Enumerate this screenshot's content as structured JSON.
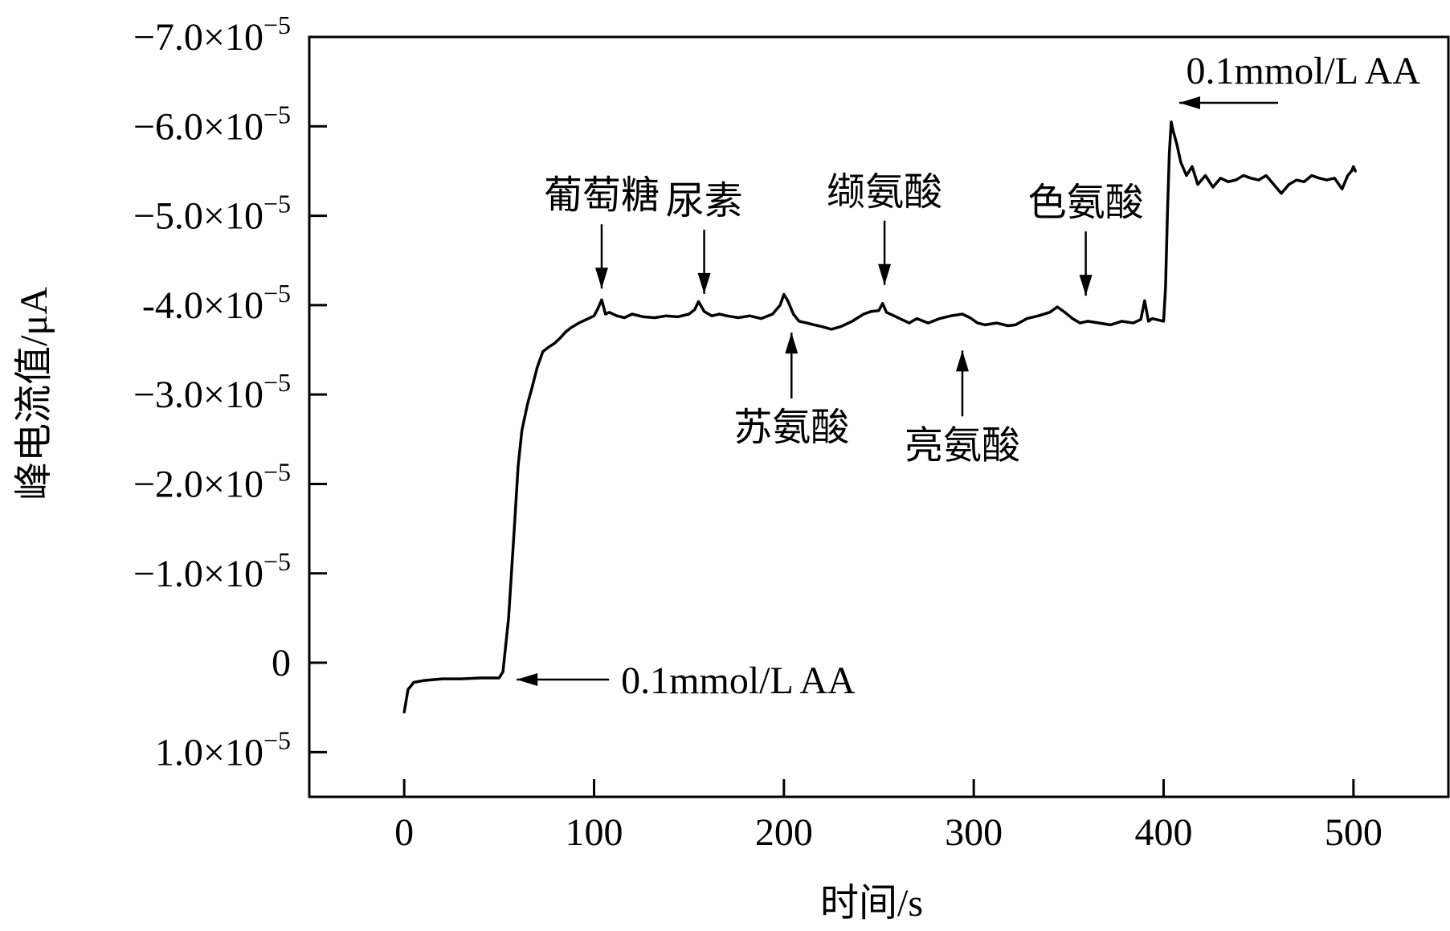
{
  "chart_data": {
    "type": "line",
    "xlabel": "时间/s",
    "ylabel": "峰电流值/μA",
    "xlim": [
      -50,
      550
    ],
    "ylim": [
      1.5,
      -7.0
    ],
    "y_inverted": true,
    "grid": false,
    "x_ticks": [
      {
        "value": 0,
        "label": "0"
      },
      {
        "value": 100,
        "label": "100"
      },
      {
        "value": 200,
        "label": "200"
      },
      {
        "value": 300,
        "label": "300"
      },
      {
        "value": 400,
        "label": "400"
      },
      {
        "value": 500,
        "label": "500"
      }
    ],
    "y_ticks": [
      {
        "value": -7.0,
        "mantissa": "−7.0×10",
        "exp": "−5"
      },
      {
        "value": -6.0,
        "mantissa": "−6.0×10",
        "exp": "−5"
      },
      {
        "value": -5.0,
        "mantissa": "−5.0×10",
        "exp": "−5"
      },
      {
        "value": -4.0,
        "mantissa": "-4.0×10",
        "exp": "−5"
      },
      {
        "value": -3.0,
        "mantissa": "−3.0×10",
        "exp": "−5"
      },
      {
        "value": -2.0,
        "mantissa": "−2.0×10",
        "exp": "−5"
      },
      {
        "value": -1.0,
        "mantissa": "−1.0×10",
        "exp": "−5"
      },
      {
        "value": 0,
        "mantissa": "0",
        "exp": ""
      },
      {
        "value": 1.0,
        "mantissa": "1.0×10",
        "exp": "−5"
      }
    ],
    "y_unit_scale": "×10^-5",
    "series": [
      {
        "x": [
          0,
          2,
          5,
          10,
          20,
          30,
          40,
          50,
          52,
          55,
          58,
          60,
          62,
          65,
          67,
          70,
          73,
          76,
          79,
          82,
          85,
          88,
          92,
          96,
          100,
          102,
          104,
          106,
          108,
          112,
          116,
          120,
          126,
          132,
          138,
          144,
          150,
          153,
          155,
          158,
          162,
          166,
          170,
          176,
          182,
          188,
          194,
          198,
          200,
          202,
          205,
          208,
          212,
          216,
          220,
          225,
          230,
          236,
          242,
          246,
          250,
          252,
          254,
          258,
          262,
          266,
          270,
          276,
          282,
          288,
          294,
          298,
          302,
          306,
          312,
          318,
          322,
          328,
          334,
          340,
          344,
          348,
          352,
          356,
          360,
          366,
          372,
          378,
          384,
          388,
          390,
          392,
          394,
          398,
          400,
          401,
          402,
          403,
          404,
          405,
          407,
          409,
          412,
          415,
          418,
          422,
          426,
          430,
          434,
          438,
          442,
          446,
          450,
          454,
          458,
          462,
          466,
          470,
          474,
          478,
          482,
          486,
          490,
          494,
          497,
          499,
          500,
          501
        ],
        "y": [
          0.55,
          0.3,
          0.22,
          0.2,
          0.18,
          0.18,
          0.17,
          0.17,
          0.1,
          -0.5,
          -1.5,
          -2.2,
          -2.6,
          -2.9,
          -3.05,
          -3.3,
          -3.48,
          -3.53,
          -3.57,
          -3.63,
          -3.7,
          -3.75,
          -3.8,
          -3.84,
          -3.88,
          -3.96,
          -4.06,
          -3.9,
          -3.92,
          -3.88,
          -3.86,
          -3.9,
          -3.87,
          -3.86,
          -3.88,
          -3.87,
          -3.9,
          -3.95,
          -4.04,
          -3.93,
          -3.88,
          -3.9,
          -3.88,
          -3.86,
          -3.88,
          -3.85,
          -3.9,
          -4.0,
          -4.12,
          -4.05,
          -3.9,
          -3.82,
          -3.8,
          -3.78,
          -3.76,
          -3.73,
          -3.76,
          -3.82,
          -3.9,
          -3.93,
          -3.94,
          -4.02,
          -3.92,
          -3.88,
          -3.84,
          -3.8,
          -3.85,
          -3.8,
          -3.85,
          -3.88,
          -3.9,
          -3.86,
          -3.8,
          -3.78,
          -3.8,
          -3.77,
          -3.78,
          -3.85,
          -3.88,
          -3.92,
          -3.98,
          -3.92,
          -3.85,
          -3.8,
          -3.82,
          -3.8,
          -3.78,
          -3.82,
          -3.8,
          -3.84,
          -4.05,
          -3.82,
          -3.85,
          -3.83,
          -3.82,
          -4.2,
          -5.0,
          -5.7,
          -6.05,
          -5.95,
          -5.8,
          -5.6,
          -5.45,
          -5.55,
          -5.35,
          -5.45,
          -5.32,
          -5.42,
          -5.38,
          -5.4,
          -5.45,
          -5.42,
          -5.4,
          -5.45,
          -5.35,
          -5.25,
          -5.35,
          -5.4,
          -5.38,
          -5.45,
          -5.42,
          -5.4,
          -5.42,
          -5.3,
          -5.45,
          -5.5,
          -5.55,
          -5.5
        ]
      }
    ],
    "annotations": [
      {
        "label": "葡萄糖",
        "x": 104,
        "y": -4.06,
        "position": "above"
      },
      {
        "label": "尿素",
        "x": 158,
        "y": -4.0,
        "position": "above"
      },
      {
        "label": "苏氨酸",
        "x": 204,
        "y": -3.8,
        "position": "below"
      },
      {
        "label": "缬氨酸",
        "x": 253,
        "y": -4.1,
        "position": "above"
      },
      {
        "label": "亮氨酸",
        "x": 294,
        "y": -3.6,
        "position": "below"
      },
      {
        "label": "色氨酸",
        "x": 359,
        "y": -3.98,
        "position": "above"
      },
      {
        "label": "0.1mmol/L AA",
        "x": 55,
        "y": 0.17,
        "position": "right-arrow"
      },
      {
        "label": "0.1mmol/L AA",
        "x": 404,
        "y": -6.3,
        "position": "right-arrow"
      }
    ]
  }
}
